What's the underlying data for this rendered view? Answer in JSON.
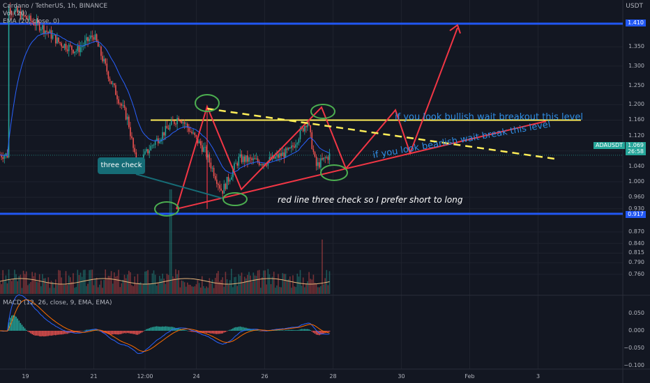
{
  "colors": {
    "background": "#131722",
    "grid": "#1e222d",
    "candle_up": "#26a69a",
    "candle_down": "#ef5350",
    "ema": "#2962ff",
    "support_blue": "#2157f3",
    "resistance_yellow": "#ffee58",
    "triangle_red": "#f23645",
    "ellipse_green": "#4caf50",
    "annotation_blue": "#2f8de4",
    "macd_line": "#2962ff",
    "signal_line": "#ff6d00",
    "volume_ma": "#e8b57b"
  },
  "legend": {
    "symbol": "Cardano / TetherUS, 1h, BINANCE",
    "volume": "Vol (20)",
    "ema": "EMA (20, close, 0)",
    "macd": "MACD (12, 26, close, 9, EMA, EMA)"
  },
  "price_axis": {
    "currency": "USDT",
    "ticks": [
      "1.350",
      "1.300",
      "1.250",
      "1.200",
      "1.160",
      "1.120",
      "1.080",
      "1.040",
      "1.000",
      "0.960",
      "0.930",
      "0.870",
      "0.840",
      "0.815",
      "0.790",
      "0.760"
    ],
    "tags": {
      "top_line": "1.410",
      "bottom_line": "0.917",
      "last_price": "1.069",
      "countdown": "26:58",
      "ticker": "ADAUSDT"
    }
  },
  "macd_axis": {
    "ticks": [
      "0.050",
      "0.000",
      "−0.050",
      "−0.100"
    ]
  },
  "time_axis": {
    "ticks": [
      "19",
      "21",
      "12:00",
      "24",
      "26",
      "28",
      "30",
      "Feb",
      "3"
    ]
  },
  "annotations": {
    "callout": "three check",
    "bullish": "if you look bullish wait breakout this level",
    "bearish": "if you look bearlish wait break this level",
    "note": "red line three check so I prefer short to long"
  },
  "chart_data": {
    "type": "candlestick",
    "symbol": "ADAUSDT",
    "interval": "1h",
    "exchange": "BINANCE",
    "price_range": [
      0.76,
      1.43
    ],
    "horizontal_levels": [
      1.41,
      1.16,
      0.917
    ],
    "last_price": 1.069,
    "price_path": [
      {
        "t": "2021-01-18 12:00",
        "p": 1.45
      },
      {
        "t": "2021-01-19 12:00",
        "p": 1.4
      },
      {
        "t": "2021-01-20 00:00",
        "p": 1.36
      },
      {
        "t": "2021-01-20 12:00",
        "p": 1.34
      },
      {
        "t": "2021-01-21 00:00",
        "p": 1.38
      },
      {
        "t": "2021-01-21 12:00",
        "p": 1.26
      },
      {
        "t": "2021-01-22 00:00",
        "p": 1.16
      },
      {
        "t": "2021-01-22 06:00",
        "p": 1.04
      },
      {
        "t": "2021-01-22 18:00",
        "p": 1.1
      },
      {
        "t": "2021-01-23 12:00",
        "p": 1.17
      },
      {
        "t": "2021-01-24 06:00",
        "p": 1.08
      },
      {
        "t": "2021-01-24 18:00",
        "p": 0.975
      },
      {
        "t": "2021-01-25 06:00",
        "p": 1.06
      },
      {
        "t": "2021-01-26 00:00",
        "p": 1.05
      },
      {
        "t": "2021-01-26 18:00",
        "p": 1.08
      },
      {
        "t": "2021-01-27 06:00",
        "p": 1.16
      },
      {
        "t": "2021-01-27 12:00",
        "p": 1.04
      },
      {
        "t": "2021-01-27 22:00",
        "p": 1.07
      }
    ]
  }
}
